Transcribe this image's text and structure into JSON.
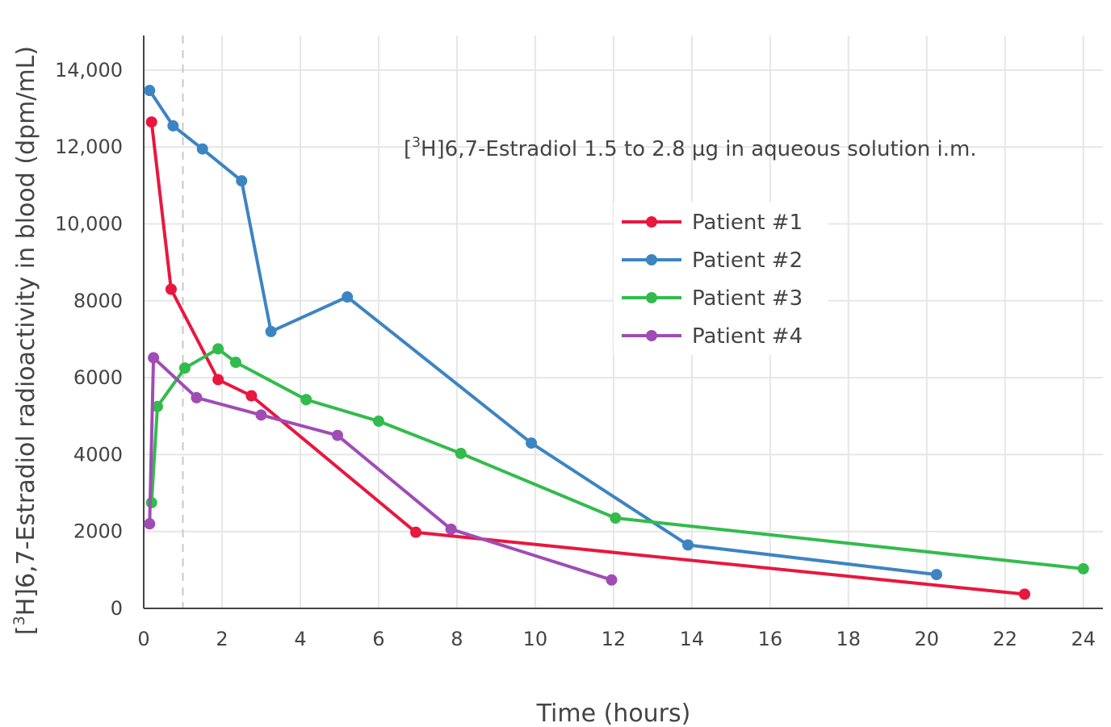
{
  "chart_data": {
    "type": "line",
    "title": "",
    "annotation": {
      "prefix": "[",
      "superscript": "3",
      "suffix": "H]6,7-Estradiol 1.5 to 2.8 µg in aqueous solution i.m."
    },
    "xlabel": "Time (hours)",
    "ylabel": {
      "prefix": "[",
      "superscript": "3",
      "suffix": "H]6,7-Estradiol radioactivity in blood (dpm/mL)"
    },
    "xlim": [
      0,
      24.5
    ],
    "ylim": [
      0,
      14900
    ],
    "x_ticks": [
      0,
      2,
      4,
      6,
      8,
      10,
      12,
      14,
      16,
      18,
      20,
      22,
      24
    ],
    "x_tick_labels": [
      "0",
      "2",
      "4",
      "6",
      "8",
      "10",
      "12",
      "14",
      "16",
      "18",
      "20",
      "22",
      "24"
    ],
    "y_ticks": [
      0,
      2000,
      4000,
      6000,
      8000,
      10000,
      12000,
      14000
    ],
    "y_tick_labels": [
      "0",
      "2000",
      "4000",
      "6000",
      "8000",
      "10,000",
      "12,000",
      "14,000"
    ],
    "grid": true,
    "reference_line": {
      "x": 1,
      "style": "dashed"
    },
    "legend_position": "top-right",
    "series": [
      {
        "name": "Patient #1",
        "color": "#e8173f",
        "x": [
          0.2,
          0.7,
          1.9,
          2.75,
          6.95,
          22.5
        ],
        "y": [
          12650,
          8300,
          5950,
          5530,
          1980,
          370
        ]
      },
      {
        "name": "Patient #2",
        "color": "#3d84c2",
        "x": [
          0.15,
          0.75,
          1.5,
          2.5,
          3.25,
          5.2,
          9.9,
          13.9,
          20.25
        ],
        "y": [
          13470,
          12550,
          11950,
          11120,
          7200,
          8100,
          4300,
          1650,
          880
        ]
      },
      {
        "name": "Patient #3",
        "color": "#33bb4d",
        "x": [
          0.2,
          0.35,
          1.05,
          1.9,
          2.35,
          4.15,
          6.0,
          8.1,
          12.05,
          24.0
        ],
        "y": [
          2750,
          5250,
          6250,
          6750,
          6400,
          5430,
          4870,
          4030,
          2350,
          1030
        ]
      },
      {
        "name": "Patient #4",
        "color": "#a04cb5",
        "x": [
          0.15,
          0.25,
          1.35,
          3.0,
          4.95,
          7.85,
          11.95
        ],
        "y": [
          2200,
          6520,
          5480,
          5030,
          4500,
          2060,
          740
        ]
      }
    ]
  }
}
